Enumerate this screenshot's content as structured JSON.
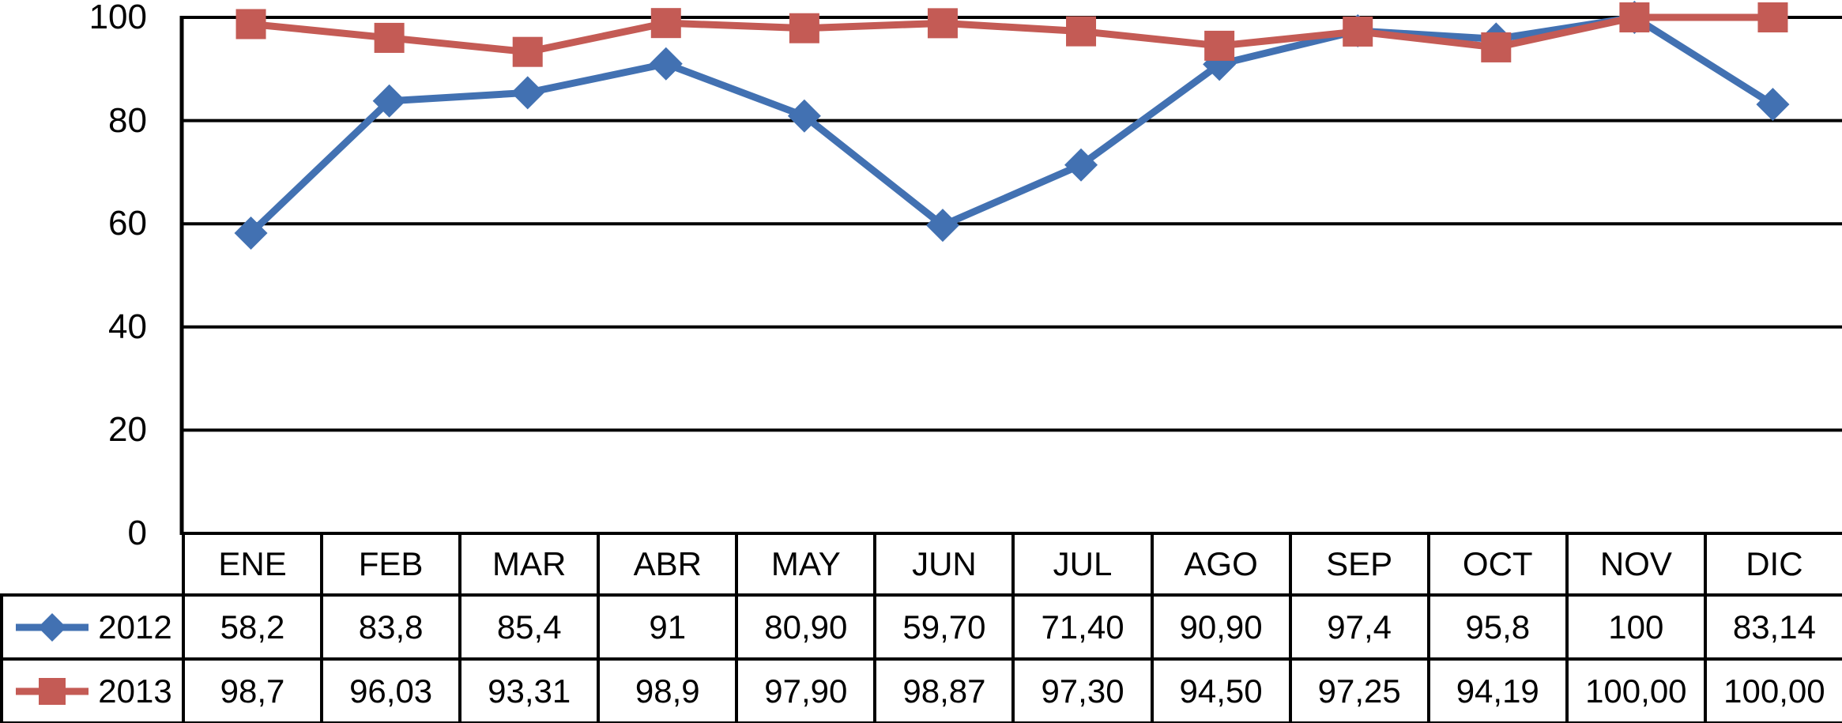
{
  "chart_data": {
    "type": "line",
    "title": "",
    "xlabel": "",
    "ylabel": "",
    "categories": [
      "ENE",
      "FEB",
      "MAR",
      "ABR",
      "MAY",
      "JUN",
      "JUL",
      "AGO",
      "SEP",
      "OCT",
      "NOV",
      "DIC"
    ],
    "series": [
      {
        "name": "2012",
        "color": "#4271B2",
        "marker": "diamond",
        "values": [
          58.2,
          83.8,
          85.4,
          91,
          80.9,
          59.7,
          71.4,
          90.9,
          97.4,
          95.8,
          100,
          83.14
        ],
        "display_values": [
          "58,2",
          "83,8",
          "85,4",
          "91",
          "80,90",
          "59,70",
          "71,40",
          "90,90",
          "97,4",
          "95,8",
          "100",
          "83,14"
        ]
      },
      {
        "name": "2013",
        "color": "#C45B55",
        "marker": "square",
        "values": [
          98.7,
          96.03,
          93.31,
          98.9,
          97.9,
          98.87,
          97.3,
          94.5,
          97.25,
          94.19,
          100.0,
          100.0
        ],
        "display_values": [
          "98,7",
          "96,03",
          "93,31",
          "98,9",
          "97,90",
          "98,87",
          "97,30",
          "94,50",
          "97,25",
          "94,19",
          "100,00",
          "100,00"
        ]
      }
    ],
    "ylim": [
      0,
      100
    ],
    "yticks": [
      0,
      20,
      40,
      60,
      80,
      100
    ],
    "ytick_labels": [
      "0",
      "20",
      "40",
      "60",
      "80",
      "100"
    ],
    "grid": true,
    "gridline_color": "#000000",
    "axis_color": "#000000",
    "legend_position": "table-rows-left"
  }
}
